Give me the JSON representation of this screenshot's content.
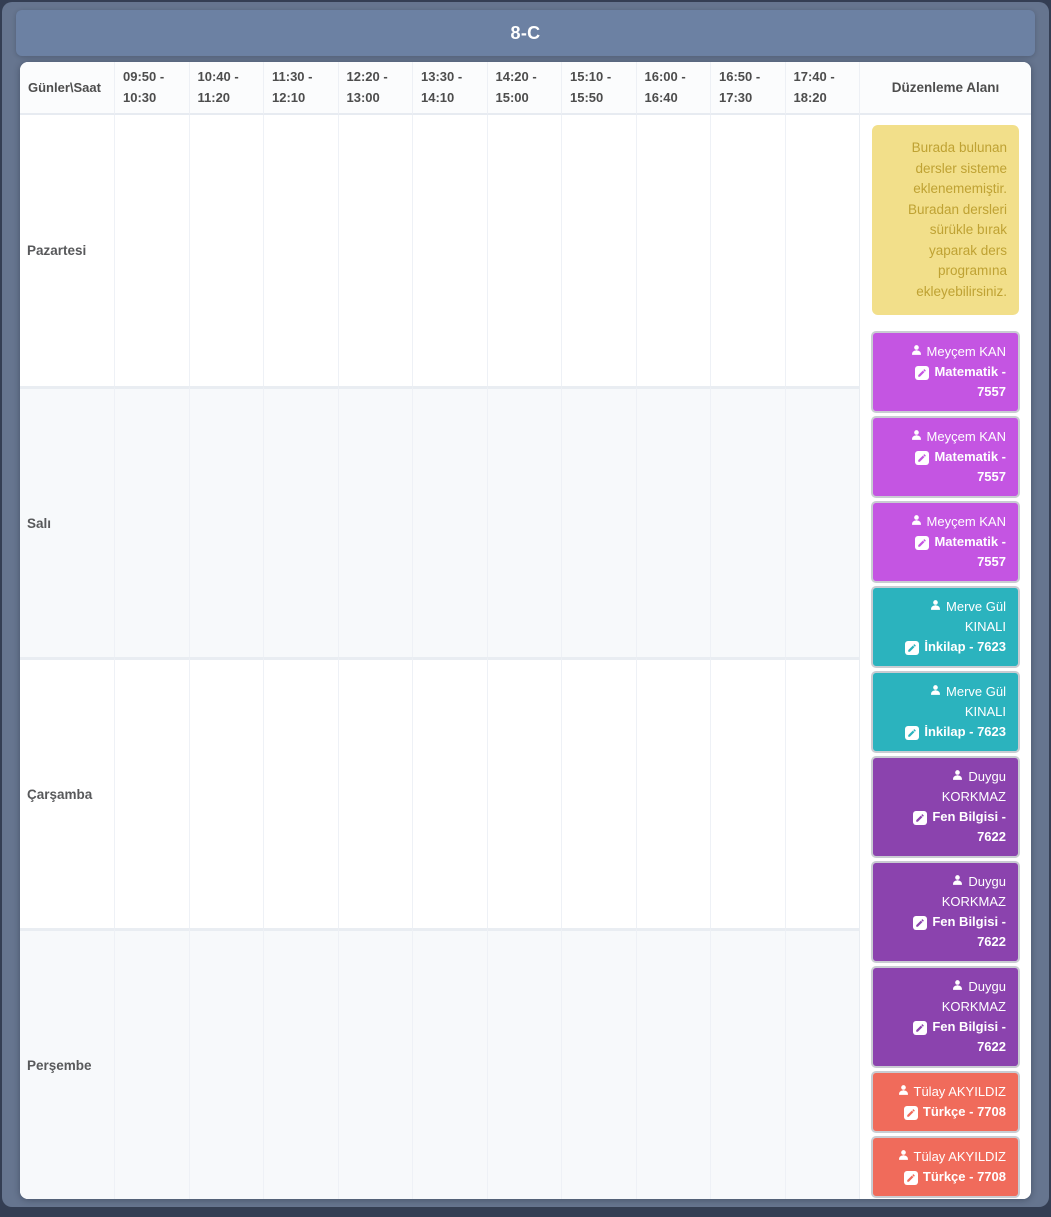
{
  "header": {
    "title": "8-C"
  },
  "table": {
    "corner_header": "Günler\\Saat",
    "edit_area_header": "Düzenleme Alanı",
    "time_slots": [
      {
        "line1": "09:50 -",
        "line2": "10:30"
      },
      {
        "line1": "10:40 -",
        "line2": "11:20"
      },
      {
        "line1": "11:30 -",
        "line2": "12:10"
      },
      {
        "line1": "12:20 -",
        "line2": "13:00"
      },
      {
        "line1": "13:30 -",
        "line2": "14:10"
      },
      {
        "line1": "14:20 -",
        "line2": "15:00"
      },
      {
        "line1": "15:10 -",
        "line2": "15:50"
      },
      {
        "line1": "16:00 -",
        "line2": "16:40"
      },
      {
        "line1": "16:50 -",
        "line2": "17:30"
      },
      {
        "line1": "17:40 -",
        "line2": "18:20"
      }
    ],
    "days": [
      "Pazartesi",
      "Salı",
      "Çarşamba",
      "Perşembe"
    ]
  },
  "edit_area": {
    "notice": "Burada bulunan dersler sisteme eklenememiştir. Buradan dersleri sürükle bırak yaparak ders programına ekleyebilirsiniz.",
    "notice_colors": {
      "background": "#F2DF8A",
      "text": "#BFA233"
    },
    "cards": [
      {
        "teacher": "Meyçem KAN",
        "lesson": "Matematik - 7557",
        "color": "#C455E2"
      },
      {
        "teacher": "Meyçem KAN",
        "lesson": "Matematik - 7557",
        "color": "#C455E2"
      },
      {
        "teacher": "Meyçem KAN",
        "lesson": "Matematik - 7557",
        "color": "#C455E2"
      },
      {
        "teacher": "Merve Gül KINALI",
        "lesson": "İnkilap - 7623",
        "color": "#2BB3BE"
      },
      {
        "teacher": "Merve Gül KINALI",
        "lesson": "İnkilap - 7623",
        "color": "#2BB3BE"
      },
      {
        "teacher": "Duygu KORKMAZ",
        "lesson": "Fen Bilgisi - 7622",
        "color": "#8B43AE"
      },
      {
        "teacher": "Duygu KORKMAZ",
        "lesson": "Fen Bilgisi - 7622",
        "color": "#8B43AE"
      },
      {
        "teacher": "Duygu KORKMAZ",
        "lesson": "Fen Bilgisi - 7622",
        "color": "#8B43AE"
      },
      {
        "teacher": "Tülay AKYILDIZ",
        "lesson": "Türkçe - 7708",
        "color": "#F06B5B"
      },
      {
        "teacher": "Tülay AKYILDIZ",
        "lesson": "Türkçe - 7708",
        "color": "#F06B5B"
      }
    ]
  },
  "colors": {
    "page_edge": "#343E53",
    "frame": "#66758F",
    "title_band": "#6C81A3",
    "row_alt": "#F7F9FB",
    "card_border": "#C9CCD2"
  }
}
